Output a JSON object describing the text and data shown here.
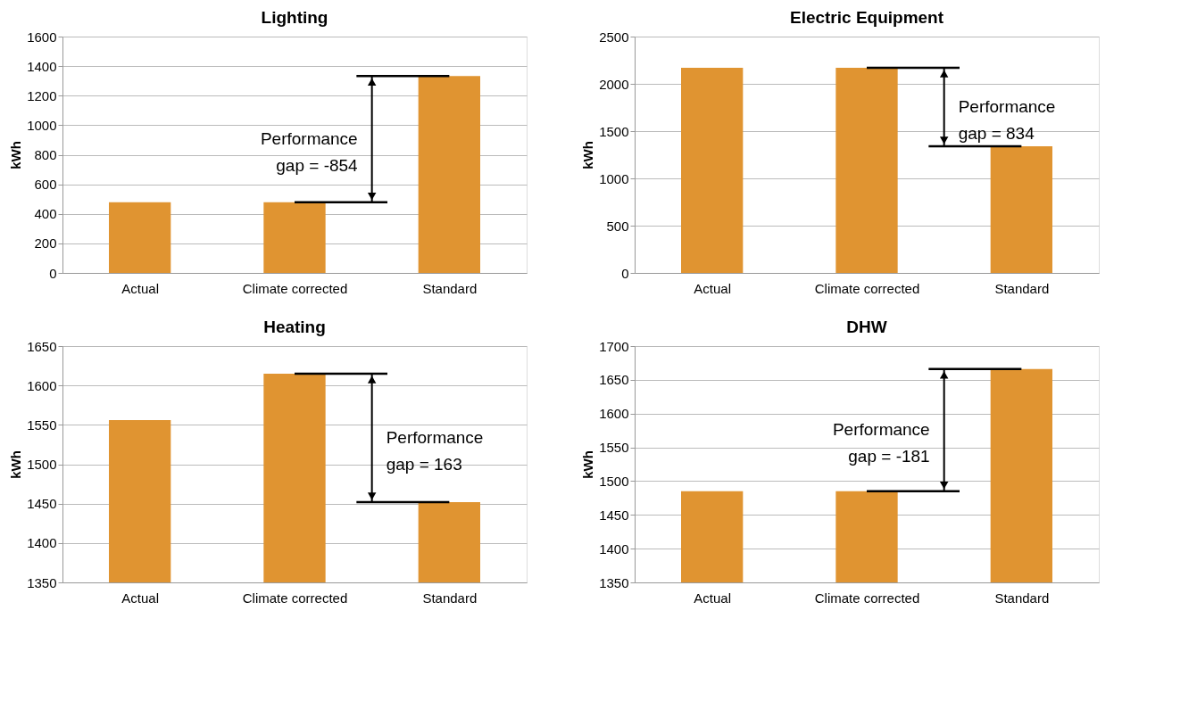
{
  "chart_data": [
    {
      "type": "bar",
      "title": "Lighting",
      "ylabel": "kWh",
      "categories": [
        "Actual",
        "Climate corrected",
        "Standard"
      ],
      "values": [
        479,
        479,
        1333
      ],
      "color": "#e09431",
      "ylim": [
        0,
        1600
      ],
      "yticks": [
        0,
        200,
        400,
        600,
        800,
        1000,
        1200,
        1400,
        1600
      ],
      "grid": "y",
      "annotations": [
        "Performance\ngap = -854"
      ]
    },
    {
      "type": "bar",
      "title": "Electric Equipment",
      "ylabel": "kWh",
      "categories": [
        "Actual",
        "Climate corrected",
        "Standard"
      ],
      "values": [
        2170,
        2170,
        1340
      ],
      "color": "#e09431",
      "ylim": [
        0,
        2500
      ],
      "yticks": [
        0,
        500,
        1000,
        1500,
        2000,
        2500
      ],
      "grid": "y",
      "annotations": [
        "Performance\ngap = 834"
      ]
    },
    {
      "type": "bar",
      "title": "Heating",
      "ylabel": "kWh",
      "categories": [
        "Actual",
        "Climate corrected",
        "Standard"
      ],
      "values": [
        1556,
        1615,
        1452
      ],
      "color": "#e09431",
      "ylim": [
        1350,
        1650
      ],
      "yticks": [
        1350,
        1400,
        1450,
        1500,
        1550,
        1600,
        1650
      ],
      "grid": "y",
      "annotations": [
        "Performance\ngap = 163"
      ]
    },
    {
      "type": "bar",
      "title": "DHW",
      "ylabel": "kWh",
      "categories": [
        "Actual",
        "Climate corrected",
        "Standard"
      ],
      "values": [
        1485,
        1485,
        1666
      ],
      "color": "#e09431",
      "ylim": [
        1350,
        1700
      ],
      "yticks": [
        1350,
        1400,
        1450,
        1500,
        1550,
        1600,
        1650,
        1700
      ],
      "grid": "y",
      "annotations": [
        "Performance\ngap = -181"
      ]
    }
  ]
}
